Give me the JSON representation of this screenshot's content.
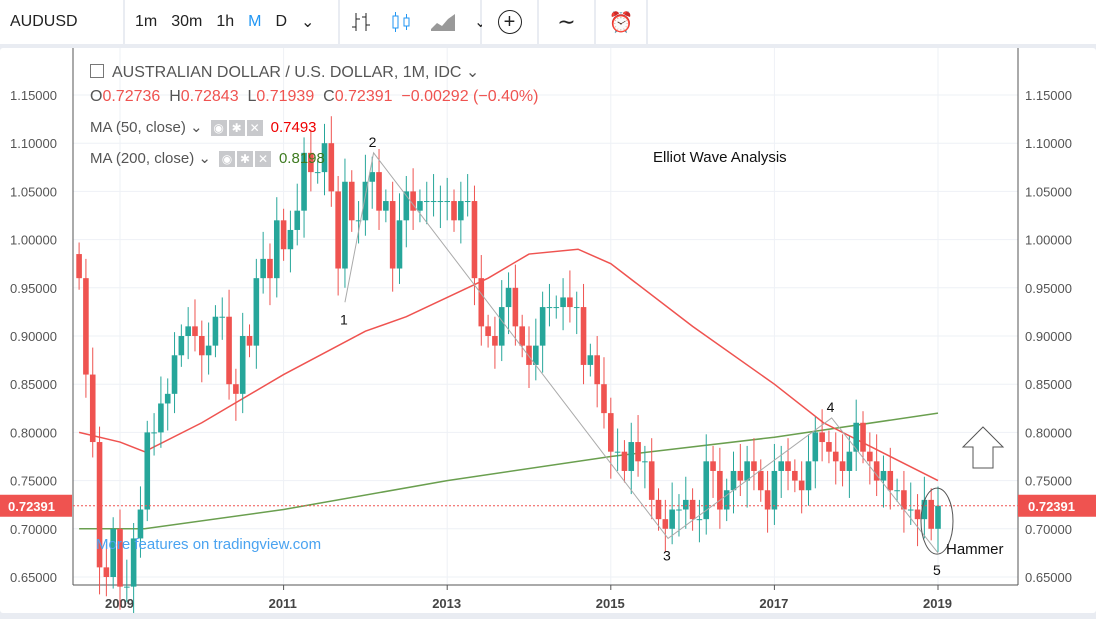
{
  "toolbar": {
    "symbol": "AUDUSD",
    "intervals": [
      "1m",
      "30m",
      "1h",
      "M",
      "D"
    ],
    "selected_interval": "M"
  },
  "legend": {
    "title": "AUSTRALIAN DOLLAR / U.S. DOLLAR, 1M, IDC",
    "o_label": "O",
    "o": "0.72736",
    "h_label": "H",
    "h": "0.72843",
    "l_label": "L",
    "l": "0.71939",
    "c_label": "C",
    "c": "0.72391",
    "change": "−0.00292 (−0.40%)",
    "ma50_label": "MA (50, close)",
    "ma50_value": "0.7493",
    "ma200_label": "MA (200, close)",
    "ma200_value": "0.8198"
  },
  "watermark": "More features on tradingview.com",
  "chart_data": {
    "type": "candlestick",
    "title": "Elliot Wave Analysis",
    "start": "2008-07",
    "interval": "1M",
    "ylim": [
      0.64,
      1.19
    ],
    "yticks": [
      "1.15000",
      "1.10000",
      "1.05000",
      "1.00000",
      "0.95000",
      "0.90000",
      "0.85000",
      "0.80000",
      "0.75000",
      "0.70000",
      "0.65000"
    ],
    "ytick_values": [
      1.15,
      1.1,
      1.05,
      1.0,
      0.95,
      0.9,
      0.85,
      0.8,
      0.75,
      0.7,
      0.65
    ],
    "xticks": [
      "2009",
      "2011",
      "2013",
      "2015",
      "2017",
      "2019"
    ],
    "xtick_values": [
      2009,
      2011,
      2013,
      2015,
      2017,
      2019
    ],
    "first_open": 0.985,
    "closes": [
      0.96,
      0.86,
      0.79,
      0.66,
      0.65,
      0.7,
      0.64,
      0.64,
      0.69,
      0.72,
      0.8,
      0.8,
      0.83,
      0.84,
      0.88,
      0.9,
      0.91,
      0.9,
      0.88,
      0.89,
      0.92,
      0.92,
      0.85,
      0.84,
      0.9,
      0.89,
      0.96,
      0.98,
      0.96,
      1.02,
      0.99,
      1.01,
      1.03,
      1.09,
      1.07,
      1.07,
      1.1,
      1.05,
      0.97,
      1.06,
      1.02,
      1.02,
      1.06,
      1.07,
      1.03,
      1.04,
      0.97,
      1.02,
      1.05,
      1.03,
      1.04,
      1.04,
      1.04,
      1.04,
      1.04,
      1.02,
      1.04,
      1.04,
      0.96,
      0.91,
      0.9,
      0.89,
      0.93,
      0.95,
      0.91,
      0.89,
      0.87,
      0.89,
      0.93,
      0.93,
      0.93,
      0.94,
      0.93,
      0.93,
      0.87,
      0.88,
      0.85,
      0.82,
      0.78,
      0.78,
      0.76,
      0.79,
      0.77,
      0.77,
      0.73,
      0.71,
      0.7,
      0.72,
      0.72,
      0.73,
      0.71,
      0.71,
      0.77,
      0.76,
      0.72,
      0.74,
      0.76,
      0.75,
      0.77,
      0.76,
      0.74,
      0.72,
      0.76,
      0.77,
      0.76,
      0.75,
      0.74,
      0.77,
      0.8,
      0.79,
      0.78,
      0.77,
      0.76,
      0.78,
      0.81,
      0.78,
      0.77,
      0.75,
      0.76,
      0.74,
      0.74,
      0.72,
      0.72,
      0.71,
      0.73,
      0.7,
      0.72391
    ],
    "last_price": "0.72391",
    "ma50": [
      [
        2008.5,
        0.8
      ],
      [
        2009.0,
        0.79
      ],
      [
        2009.3,
        0.78
      ],
      [
        2010.0,
        0.81
      ],
      [
        2011.0,
        0.86
      ],
      [
        2012.0,
        0.905
      ],
      [
        2012.5,
        0.92
      ],
      [
        2013.5,
        0.96
      ],
      [
        2014.0,
        0.985
      ],
      [
        2014.6,
        0.99
      ],
      [
        2015.0,
        0.975
      ],
      [
        2016.0,
        0.91
      ],
      [
        2017.0,
        0.85
      ],
      [
        2017.6,
        0.81
      ],
      [
        2018.3,
        0.78
      ],
      [
        2019.0,
        0.75
      ]
    ],
    "ma200": [
      [
        2008.5,
        0.7
      ],
      [
        2009.3,
        0.7
      ],
      [
        2011.0,
        0.72
      ],
      [
        2013.0,
        0.75
      ],
      [
        2015.0,
        0.775
      ],
      [
        2017.0,
        0.795
      ],
      [
        2019.0,
        0.82
      ]
    ],
    "waves": [
      {
        "label": "1",
        "t": 2011.75,
        "p": 0.935
      },
      {
        "label": "2",
        "t": 2012.1,
        "p": 1.09
      },
      {
        "label": "3",
        "t": 2015.7,
        "p": 0.69
      },
      {
        "label": "4",
        "t": 2017.7,
        "p": 0.815
      },
      {
        "label": "5",
        "t": 2019.0,
        "p": 0.675
      }
    ],
    "annotation": "Hammer",
    "colors": {
      "up": "#26a69a",
      "down": "#ef5350",
      "ma50": "#ef5350",
      "ma200": "#6a9f4f"
    }
  }
}
